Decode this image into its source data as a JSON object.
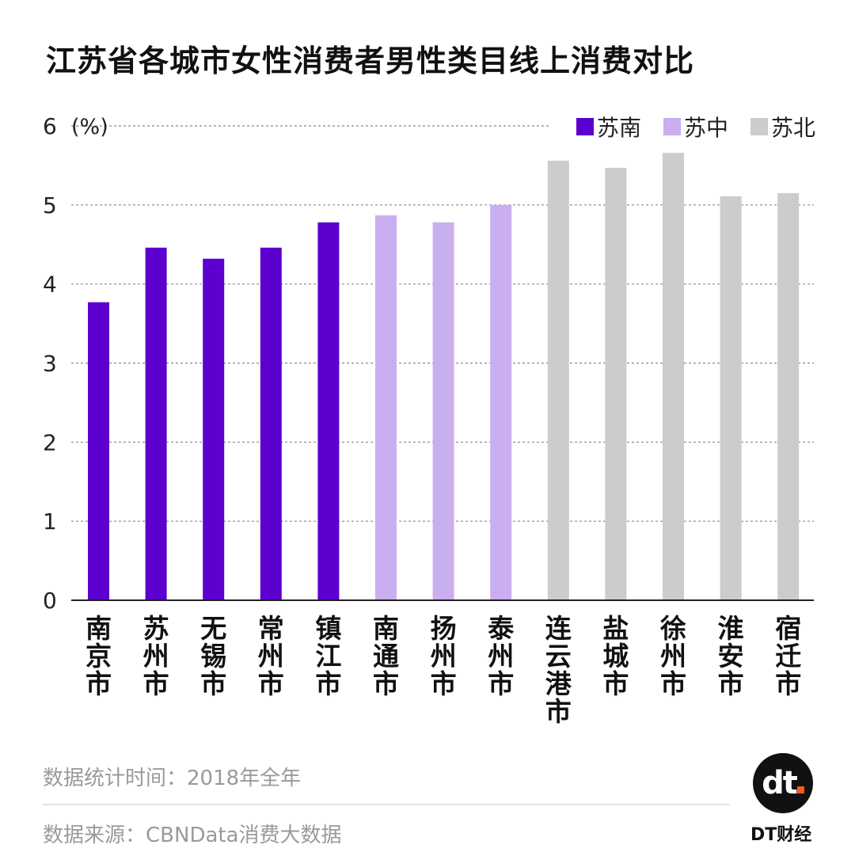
{
  "chart_data": {
    "type": "bar",
    "title": "江苏省各城市女性消费者男性类目线上消费对比",
    "ylabel": "(%)",
    "ylim": [
      0,
      6
    ],
    "yticks": [
      0,
      1,
      2,
      3,
      4,
      5,
      6
    ],
    "grid": true,
    "legend_position": "top-right",
    "legend": [
      {
        "name": "苏南",
        "color": "#5b00cf"
      },
      {
        "name": "苏中",
        "color": "#c9aef0"
      },
      {
        "name": "苏北",
        "color": "#cccccc"
      }
    ],
    "categories": [
      "南京市",
      "苏州市",
      "无锡市",
      "常州市",
      "镇江市",
      "南通市",
      "扬州市",
      "泰州市",
      "连云港市",
      "盐城市",
      "徐州市",
      "淮安市",
      "宿迁市"
    ],
    "values": [
      3.77,
      4.46,
      4.32,
      4.46,
      4.78,
      4.87,
      4.78,
      5.0,
      5.56,
      5.47,
      5.66,
      5.11,
      5.15
    ],
    "groups": [
      0,
      0,
      0,
      0,
      0,
      1,
      1,
      1,
      2,
      2,
      2,
      2,
      2
    ]
  },
  "footer": {
    "time_note": "数据统计时间：2018年全年",
    "source_note": "数据来源：CBNData消费大数据"
  },
  "brand": {
    "logo_mark": "dt",
    "logo_text": "DT财经"
  }
}
